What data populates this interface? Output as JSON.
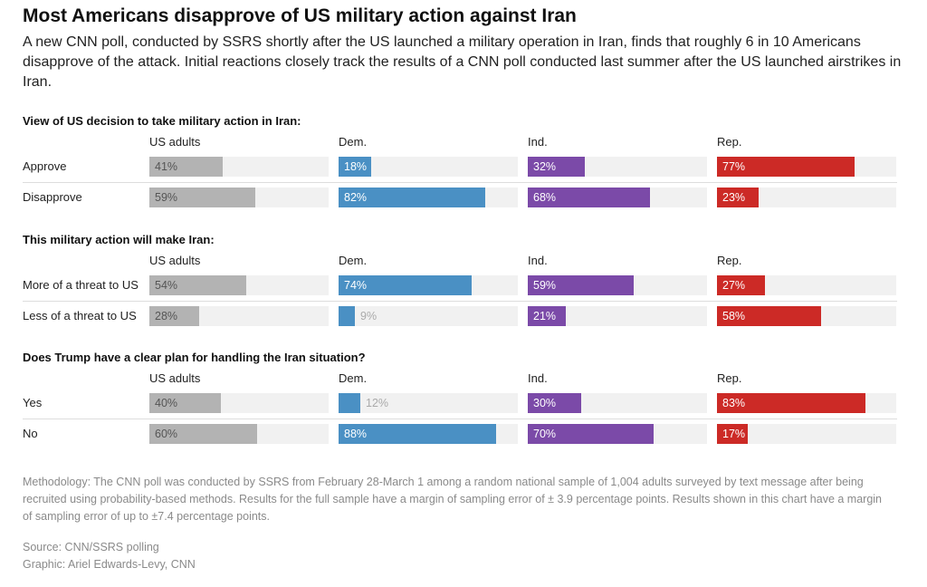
{
  "title": "Most Americans disapprove of US military action against Iran",
  "subtitle": "A new CNN poll, conducted by SSRS shortly after the US launched a military operation in Iran, finds that roughly 6 in 10 Americans disapprove of the attack. Initial reactions closely track the results of a CNN poll conducted last summer after the US launched airstrikes in Iran.",
  "colors": {
    "US adults": "#b3b3b3",
    "Dem.": "#4a90c4",
    "Ind.": "#7b4aa8",
    "Rep.": "#cc2a26",
    "track": "#f1f1f1"
  },
  "chart_data": {
    "type": "bar",
    "orientation": "horizontal",
    "groups": [
      "US adults",
      "Dem.",
      "Ind.",
      "Rep."
    ],
    "xlim": [
      0,
      100
    ],
    "unit": "%",
    "panels": [
      {
        "question": "View of US decision to take military action in Iran:",
        "rows": [
          {
            "label": "Approve",
            "values": [
              41,
              18,
              32,
              77
            ]
          },
          {
            "label": "Disapprove",
            "values": [
              59,
              82,
              68,
              23
            ]
          }
        ]
      },
      {
        "question": "This military action will make Iran:",
        "rows": [
          {
            "label": "More of a threat to US",
            "values": [
              54,
              74,
              59,
              27
            ]
          },
          {
            "label": "Less of a threat to US",
            "values": [
              28,
              9,
              21,
              58
            ]
          }
        ]
      },
      {
        "question": "Does Trump have a clear plan for handling the Iran situation?",
        "rows": [
          {
            "label": "Yes",
            "values": [
              40,
              12,
              30,
              83
            ]
          },
          {
            "label": "No",
            "values": [
              60,
              88,
              70,
              17
            ]
          }
        ]
      }
    ]
  },
  "footer": {
    "methodology": "Methodology: The CNN poll was conducted by SSRS from February 28-March 1 among a random national sample of 1,004 adults surveyed by text message after being recruited using probability-based methods. Results for the full sample have a margin of sampling error of ± 3.9 percentage points. Results shown in this chart have a margin of sampling error of up to ±7.4 percentage points.",
    "source": "Source: CNN/SSRS polling",
    "credit": "Graphic: Ariel Edwards-Levy, CNN"
  }
}
